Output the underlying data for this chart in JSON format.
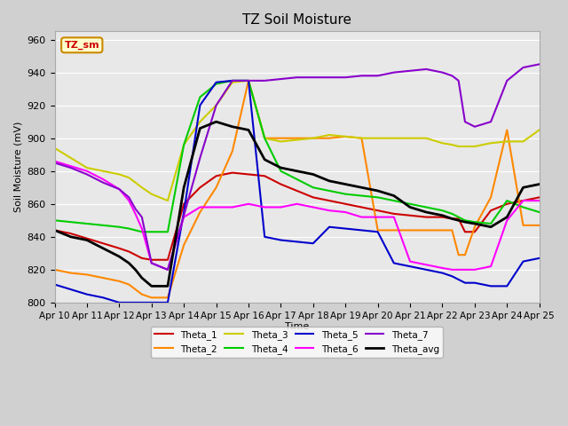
{
  "title": "TZ Soil Moisture",
  "xlabel": "Time",
  "ylabel": "Soil Moisture (mV)",
  "ylim": [
    800,
    965
  ],
  "xlim": [
    0,
    15
  ],
  "label_box_text": "TZ_sm",
  "label_box_color": "#ffffcc",
  "label_box_border": "#cc8800",
  "label_box_text_color": "#cc0000",
  "xtick_labels": [
    "Apr 10",
    "Apr 11",
    "Apr 12",
    "Apr 13",
    "Apr 14",
    "Apr 15",
    "Apr 16",
    "Apr 17",
    "Apr 18",
    "Apr 19",
    "Apr 20",
    "Apr 21",
    "Apr 22",
    "Apr 23",
    "Apr 24",
    "Apr 25"
  ],
  "ytick_values": [
    800,
    820,
    840,
    860,
    880,
    900,
    920,
    940,
    960
  ],
  "line_colors": {
    "Theta_1": "#cc0000",
    "Theta_2": "#ff8800",
    "Theta_3": "#cccc00",
    "Theta_4": "#00cc00",
    "Theta_5": "#0000cc",
    "Theta_6": "#ff00ff",
    "Theta_7": "#8800cc",
    "Theta_avg": "#000000"
  },
  "series": {
    "Theta_1": {
      "x": [
        0,
        0.5,
        1.0,
        1.5,
        2.0,
        2.3,
        2.5,
        2.7,
        3.0,
        3.5,
        4.0,
        4.5,
        5.0,
        5.5,
        6.0,
        6.5,
        7.0,
        7.5,
        8.0,
        8.5,
        9.0,
        9.5,
        10.0,
        10.5,
        11.0,
        11.5,
        12.0,
        12.3,
        12.5,
        12.7,
        13.0,
        13.5,
        14.0,
        14.5,
        15.0
      ],
      "y": [
        844,
        842,
        839,
        836,
        833,
        831,
        829,
        827,
        826,
        826,
        860,
        870,
        877,
        879,
        878,
        877,
        872,
        868,
        864,
        862,
        860,
        858,
        856,
        854,
        853,
        852,
        852,
        851,
        851,
        843,
        843,
        856,
        860,
        862,
        864
      ]
    },
    "Theta_2": {
      "x": [
        0,
        0.5,
        1.0,
        1.5,
        2.0,
        2.3,
        2.5,
        2.7,
        3.0,
        3.5,
        4.0,
        4.5,
        5.0,
        5.5,
        6.0,
        6.5,
        7.0,
        7.5,
        8.0,
        8.5,
        9.0,
        9.5,
        10.0,
        10.5,
        11.0,
        11.5,
        12.0,
        12.3,
        12.5,
        12.7,
        13.0,
        13.5,
        14.0,
        14.5,
        15.0
      ],
      "y": [
        820,
        818,
        817,
        815,
        813,
        811,
        808,
        805,
        803,
        803,
        835,
        855,
        870,
        892,
        935,
        900,
        900,
        900,
        900,
        900,
        901,
        900,
        844,
        844,
        844,
        844,
        844,
        844,
        829,
        829,
        846,
        864,
        905,
        847,
        847
      ]
    },
    "Theta_3": {
      "x": [
        0,
        0.5,
        1.0,
        1.5,
        2.0,
        2.3,
        2.5,
        2.7,
        3.0,
        3.5,
        4.0,
        4.5,
        5.0,
        5.5,
        6.0,
        6.5,
        7.0,
        7.5,
        8.0,
        8.5,
        9.0,
        9.5,
        10.0,
        10.5,
        11.0,
        11.5,
        12.0,
        12.3,
        12.5,
        12.7,
        13.0,
        13.5,
        14.0,
        14.5,
        15.0
      ],
      "y": [
        894,
        888,
        882,
        880,
        878,
        876,
        873,
        870,
        866,
        862,
        896,
        910,
        920,
        934,
        935,
        900,
        898,
        899,
        900,
        902,
        901,
        900,
        900,
        900,
        900,
        900,
        897,
        896,
        895,
        895,
        895,
        897,
        898,
        898,
        905
      ]
    },
    "Theta_4": {
      "x": [
        0,
        0.5,
        1.0,
        1.5,
        2.0,
        2.3,
        2.5,
        2.7,
        3.0,
        3.5,
        4.0,
        4.5,
        5.0,
        5.5,
        6.0,
        6.5,
        7.0,
        7.5,
        8.0,
        8.5,
        9.0,
        9.5,
        10.0,
        10.5,
        11.0,
        11.5,
        12.0,
        12.3,
        12.5,
        12.7,
        13.0,
        13.5,
        14.0,
        14.5,
        15.0
      ],
      "y": [
        850,
        849,
        848,
        847,
        846,
        845,
        844,
        843,
        843,
        843,
        896,
        925,
        933,
        935,
        935,
        900,
        880,
        875,
        870,
        868,
        866,
        865,
        864,
        862,
        860,
        858,
        856,
        854,
        852,
        850,
        849,
        848,
        862,
        858,
        855
      ]
    },
    "Theta_5": {
      "x": [
        0,
        0.5,
        1.0,
        1.5,
        2.0,
        2.3,
        2.5,
        2.7,
        3.0,
        3.5,
        4.0,
        4.5,
        5.0,
        5.5,
        6.0,
        6.5,
        7.0,
        7.5,
        8.0,
        8.5,
        9.0,
        9.5,
        10.0,
        10.5,
        11.0,
        11.5,
        12.0,
        12.3,
        12.5,
        12.7,
        13.0,
        13.5,
        14.0,
        14.5,
        15.0
      ],
      "y": [
        811,
        808,
        805,
        803,
        800,
        800,
        800,
        800,
        800,
        800,
        855,
        920,
        934,
        935,
        935,
        840,
        838,
        837,
        836,
        846,
        845,
        844,
        843,
        824,
        822,
        820,
        818,
        816,
        814,
        812,
        812,
        810,
        810,
        825,
        827
      ]
    },
    "Theta_6": {
      "x": [
        0,
        0.5,
        1.0,
        1.5,
        2.0,
        2.3,
        2.5,
        2.7,
        3.0,
        3.5,
        4.0,
        4.5,
        5.0,
        5.5,
        6.0,
        6.5,
        7.0,
        7.5,
        8.0,
        8.5,
        9.0,
        9.5,
        10.0,
        10.5,
        11.0,
        11.5,
        12.0,
        12.3,
        12.5,
        12.7,
        13.0,
        13.5,
        14.0,
        14.5,
        15.0
      ],
      "y": [
        886,
        883,
        880,
        875,
        869,
        862,
        854,
        845,
        824,
        820,
        852,
        858,
        858,
        858,
        860,
        858,
        858,
        860,
        858,
        856,
        855,
        852,
        852,
        852,
        825,
        823,
        821,
        820,
        820,
        820,
        820,
        822,
        850,
        862,
        862
      ]
    },
    "Theta_7": {
      "x": [
        0,
        0.5,
        1.0,
        1.5,
        2.0,
        2.3,
        2.5,
        2.7,
        3.0,
        3.5,
        4.0,
        4.5,
        5.0,
        5.5,
        6.0,
        6.5,
        7.0,
        7.5,
        8.0,
        8.5,
        9.0,
        9.5,
        10.0,
        10.5,
        11.0,
        11.5,
        12.0,
        12.3,
        12.5,
        12.7,
        13.0,
        13.5,
        14.0,
        14.5,
        15.0
      ],
      "y": [
        885,
        882,
        878,
        873,
        869,
        864,
        857,
        852,
        824,
        820,
        853,
        888,
        920,
        935,
        935,
        935,
        936,
        937,
        937,
        937,
        937,
        938,
        938,
        940,
        941,
        942,
        940,
        938,
        935,
        910,
        907,
        910,
        935,
        943,
        945
      ]
    },
    "Theta_avg": {
      "x": [
        0,
        0.5,
        1.0,
        1.5,
        2.0,
        2.3,
        2.5,
        2.7,
        3.0,
        3.5,
        4.0,
        4.5,
        5.0,
        5.5,
        6.0,
        6.5,
        7.0,
        7.5,
        8.0,
        8.5,
        9.0,
        9.5,
        10.0,
        10.5,
        11.0,
        11.5,
        12.0,
        12.3,
        12.5,
        12.7,
        13.0,
        13.5,
        14.0,
        14.5,
        15.0
      ],
      "y": [
        844,
        840,
        838,
        833,
        828,
        824,
        820,
        815,
        810,
        810,
        870,
        906,
        910,
        907,
        905,
        887,
        882,
        880,
        878,
        874,
        872,
        870,
        868,
        865,
        858,
        855,
        853,
        851,
        850,
        849,
        848,
        846,
        852,
        870,
        872
      ]
    }
  }
}
